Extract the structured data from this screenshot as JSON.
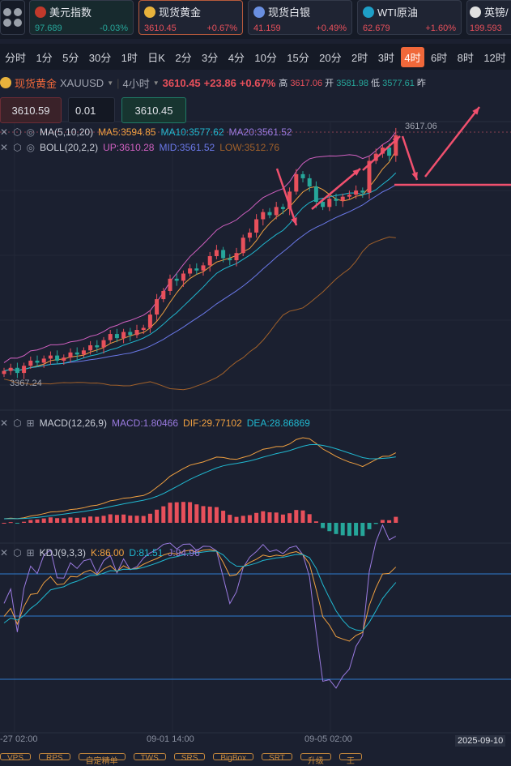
{
  "quotes": [
    {
      "name": "美元指数",
      "price": "97.689",
      "change": "-0.03%",
      "color": "#26a69a",
      "icon": "us-flag-icon",
      "icolor": "#c0392b"
    },
    {
      "name": "现货黄金",
      "price": "3610.45",
      "change": "+0.67%",
      "color": "#e8505b",
      "icon": "gold-icon",
      "icolor": "#e8b23c"
    },
    {
      "name": "现货白银",
      "price": "41.159",
      "change": "+0.49%",
      "color": "#e8505b",
      "icon": "silver-icon",
      "icolor": "#6a8fe0"
    },
    {
      "name": "WTI原油",
      "price": "62.679",
      "change": "+1.60%",
      "color": "#e8505b",
      "icon": "oil-icon",
      "icolor": "#1e9fc7"
    },
    {
      "name": "英镑/",
      "price": "199.593",
      "change": "",
      "color": "#e8505b",
      "icon": "uk-flag-icon",
      "icolor": "#e0e0e0"
    }
  ],
  "timeframes": [
    "分时",
    "1分",
    "5分",
    "30分",
    "1时",
    "日K",
    "2分",
    "3分",
    "4分",
    "10分",
    "15分",
    "20分",
    "2时",
    "3时",
    "4时",
    "6时",
    "8时",
    "12时"
  ],
  "active_timeframe": "4时",
  "symbol": {
    "name": "现货黄金",
    "code": "XAUUSD",
    "period": "4小时",
    "price": "3610.45",
    "change": "+23.86",
    "pct": "+0.67%",
    "high_label": "高",
    "high": "3617.06",
    "open_label": "开",
    "open": "3581.98",
    "low_label": "低",
    "low": "3577.61",
    "more": "昨"
  },
  "trade": {
    "sell": "3610.59",
    "lot": "0.01",
    "buy": "3610.45"
  },
  "ma": {
    "name": "MA(5,10,20)",
    "ma5": "MA5:3594.85",
    "ma10": "MA10:3577.62",
    "ma20": "MA20:3561.52"
  },
  "boll": {
    "name": "BOLL(20,2,2)",
    "up": "UP:3610.28",
    "mid": "MID:3561.52",
    "low": "LOW:3512.76"
  },
  "macd": {
    "name": "MACD(12,26,9)",
    "macd": "MACD:1.80466",
    "dif": "DIF:29.77102",
    "dea": "DEA:28.86869"
  },
  "kdj": {
    "name": "KDJ(9,3,3)",
    "k": "K:86.00",
    "d": "D:81.51",
    "j": "J:94.96"
  },
  "price_labels": {
    "high": "3617.06",
    "low": "3367.24"
  },
  "time_axis": [
    "-27 02:00",
    "09-01 14:00",
    "09-05 02:00",
    "2025-09-10"
  ],
  "bottom_buttons": [
    "VPS",
    "RPS",
    "自定精单",
    "TWS",
    "SRS",
    "BigBox",
    "SRT",
    "升级",
    "王"
  ],
  "colors": {
    "up": "#e8505b",
    "down": "#26a69a",
    "ma5": "#f0a040",
    "ma10": "#20b8d0",
    "ma20": "#9a7ae0",
    "up_band": "#d060c0",
    "mid": "#6a78e8",
    "low_band": "#a0602a"
  },
  "closes": [
    3380,
    3383,
    3378,
    3385,
    3390,
    3388,
    3392,
    3395,
    3390,
    3393,
    3398,
    3396,
    3400,
    3405,
    3403,
    3410,
    3416,
    3412,
    3418,
    3415,
    3420,
    3422,
    3435,
    3450,
    3458,
    3470,
    3468,
    3475,
    3480,
    3478,
    3483,
    3492,
    3498,
    3490,
    3488,
    3495,
    3510,
    3515,
    3528,
    3535,
    3532,
    3540,
    3538,
    3555,
    3572,
    3568,
    3560,
    3545,
    3540,
    3548,
    3546,
    3550,
    3552,
    3556,
    3554,
    3585,
    3592,
    3598,
    3590,
    3610
  ]
}
